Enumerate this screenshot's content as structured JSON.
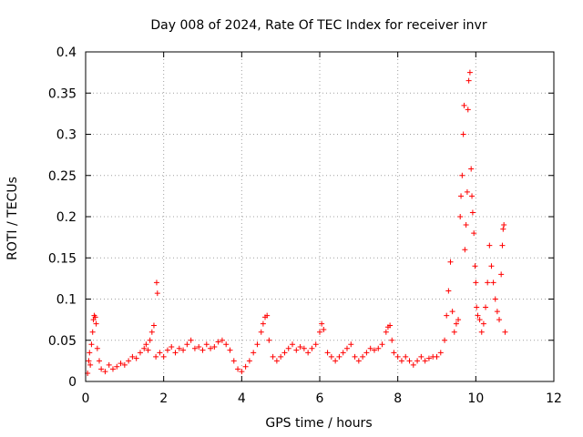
{
  "chart_data": {
    "type": "scatter",
    "title": "Day 008 of 2024, Rate Of TEC Index for receiver invr",
    "xlabel": "GPS time / hours",
    "ylabel": "ROTI / TECUs",
    "xlim": [
      0,
      12
    ],
    "ylim": [
      0,
      0.4
    ],
    "x_ticks": [
      0,
      2,
      4,
      6,
      8,
      10,
      12
    ],
    "x_tick_labels": [
      "0",
      "2",
      "4",
      "6",
      "8",
      "10",
      "12"
    ],
    "y_ticks": [
      0,
      0.05,
      0.1,
      0.15,
      0.2,
      0.25,
      0.3,
      0.35,
      0.4
    ],
    "y_tick_labels": [
      "0",
      "0.05",
      "0.1",
      "0.15",
      "0.2",
      "0.25",
      "0.3",
      "0.35",
      "0.4"
    ],
    "grid": true,
    "marker": "+",
    "color": "#ff0000",
    "series": [
      {
        "name": "ROTI",
        "points": [
          [
            0.05,
            0.01
          ],
          [
            0.08,
            0.025
          ],
          [
            0.1,
            0.035
          ],
          [
            0.12,
            0.02
          ],
          [
            0.15,
            0.045
          ],
          [
            0.18,
            0.06
          ],
          [
            0.2,
            0.075
          ],
          [
            0.22,
            0.08
          ],
          [
            0.25,
            0.078
          ],
          [
            0.27,
            0.07
          ],
          [
            0.3,
            0.04
          ],
          [
            0.35,
            0.025
          ],
          [
            0.4,
            0.015
          ],
          [
            0.5,
            0.012
          ],
          [
            0.6,
            0.02
          ],
          [
            0.7,
            0.015
          ],
          [
            0.8,
            0.018
          ],
          [
            0.9,
            0.022
          ],
          [
            1.0,
            0.02
          ],
          [
            1.1,
            0.025
          ],
          [
            1.2,
            0.03
          ],
          [
            1.3,
            0.028
          ],
          [
            1.4,
            0.035
          ],
          [
            1.5,
            0.04
          ],
          [
            1.55,
            0.045
          ],
          [
            1.6,
            0.038
          ],
          [
            1.65,
            0.05
          ],
          [
            1.7,
            0.06
          ],
          [
            1.75,
            0.068
          ],
          [
            1.8,
            0.03
          ],
          [
            1.82,
            0.12
          ],
          [
            1.84,
            0.107
          ],
          [
            1.9,
            0.035
          ],
          [
            2.0,
            0.03
          ],
          [
            2.1,
            0.038
          ],
          [
            2.2,
            0.042
          ],
          [
            2.3,
            0.035
          ],
          [
            2.4,
            0.04
          ],
          [
            2.5,
            0.038
          ],
          [
            2.6,
            0.045
          ],
          [
            2.7,
            0.05
          ],
          [
            2.8,
            0.04
          ],
          [
            2.9,
            0.042
          ],
          [
            3.0,
            0.038
          ],
          [
            3.1,
            0.045
          ],
          [
            3.2,
            0.04
          ],
          [
            3.3,
            0.042
          ],
          [
            3.4,
            0.048
          ],
          [
            3.5,
            0.05
          ],
          [
            3.6,
            0.045
          ],
          [
            3.7,
            0.038
          ],
          [
            3.8,
            0.025
          ],
          [
            3.9,
            0.015
          ],
          [
            4.0,
            0.012
          ],
          [
            4.1,
            0.018
          ],
          [
            4.2,
            0.025
          ],
          [
            4.3,
            0.035
          ],
          [
            4.4,
            0.045
          ],
          [
            4.5,
            0.06
          ],
          [
            4.55,
            0.07
          ],
          [
            4.6,
            0.078
          ],
          [
            4.65,
            0.08
          ],
          [
            4.7,
            0.05
          ],
          [
            4.8,
            0.03
          ],
          [
            4.9,
            0.025
          ],
          [
            5.0,
            0.03
          ],
          [
            5.1,
            0.035
          ],
          [
            5.2,
            0.04
          ],
          [
            5.3,
            0.045
          ],
          [
            5.4,
            0.038
          ],
          [
            5.5,
            0.042
          ],
          [
            5.6,
            0.04
          ],
          [
            5.7,
            0.035
          ],
          [
            5.8,
            0.04
          ],
          [
            5.9,
            0.045
          ],
          [
            6.0,
            0.06
          ],
          [
            6.05,
            0.07
          ],
          [
            6.1,
            0.063
          ],
          [
            6.2,
            0.035
          ],
          [
            6.3,
            0.03
          ],
          [
            6.4,
            0.025
          ],
          [
            6.5,
            0.03
          ],
          [
            6.6,
            0.035
          ],
          [
            6.7,
            0.04
          ],
          [
            6.8,
            0.045
          ],
          [
            6.9,
            0.03
          ],
          [
            7.0,
            0.025
          ],
          [
            7.1,
            0.03
          ],
          [
            7.2,
            0.035
          ],
          [
            7.3,
            0.04
          ],
          [
            7.4,
            0.038
          ],
          [
            7.5,
            0.04
          ],
          [
            7.6,
            0.045
          ],
          [
            7.7,
            0.06
          ],
          [
            7.75,
            0.066
          ],
          [
            7.8,
            0.068
          ],
          [
            7.85,
            0.05
          ],
          [
            7.9,
            0.035
          ],
          [
            8.0,
            0.03
          ],
          [
            8.1,
            0.025
          ],
          [
            8.2,
            0.03
          ],
          [
            8.3,
            0.025
          ],
          [
            8.4,
            0.02
          ],
          [
            8.5,
            0.025
          ],
          [
            8.6,
            0.03
          ],
          [
            8.7,
            0.025
          ],
          [
            8.8,
            0.028
          ],
          [
            8.9,
            0.03
          ],
          [
            9.0,
            0.03
          ],
          [
            9.1,
            0.035
          ],
          [
            9.2,
            0.05
          ],
          [
            9.25,
            0.08
          ],
          [
            9.3,
            0.11
          ],
          [
            9.35,
            0.145
          ],
          [
            9.4,
            0.085
          ],
          [
            9.45,
            0.06
          ],
          [
            9.5,
            0.07
          ],
          [
            9.55,
            0.075
          ],
          [
            9.6,
            0.2
          ],
          [
            9.62,
            0.225
          ],
          [
            9.65,
            0.25
          ],
          [
            9.68,
            0.3
          ],
          [
            9.7,
            0.335
          ],
          [
            9.72,
            0.16
          ],
          [
            9.75,
            0.19
          ],
          [
            9.78,
            0.23
          ],
          [
            9.8,
            0.33
          ],
          [
            9.82,
            0.365
          ],
          [
            9.85,
            0.375
          ],
          [
            9.88,
            0.258
          ],
          [
            9.9,
            0.225
          ],
          [
            9.92,
            0.205
          ],
          [
            9.95,
            0.18
          ],
          [
            9.98,
            0.14
          ],
          [
            10.0,
            0.12
          ],
          [
            10.02,
            0.09
          ],
          [
            10.05,
            0.08
          ],
          [
            10.1,
            0.075
          ],
          [
            10.15,
            0.06
          ],
          [
            10.2,
            0.07
          ],
          [
            10.25,
            0.09
          ],
          [
            10.3,
            0.12
          ],
          [
            10.35,
            0.165
          ],
          [
            10.4,
            0.14
          ],
          [
            10.45,
            0.12
          ],
          [
            10.5,
            0.1
          ],
          [
            10.55,
            0.085
          ],
          [
            10.6,
            0.075
          ],
          [
            10.65,
            0.13
          ],
          [
            10.68,
            0.165
          ],
          [
            10.7,
            0.185
          ],
          [
            10.72,
            0.19
          ],
          [
            10.75,
            0.06
          ]
        ]
      }
    ]
  }
}
